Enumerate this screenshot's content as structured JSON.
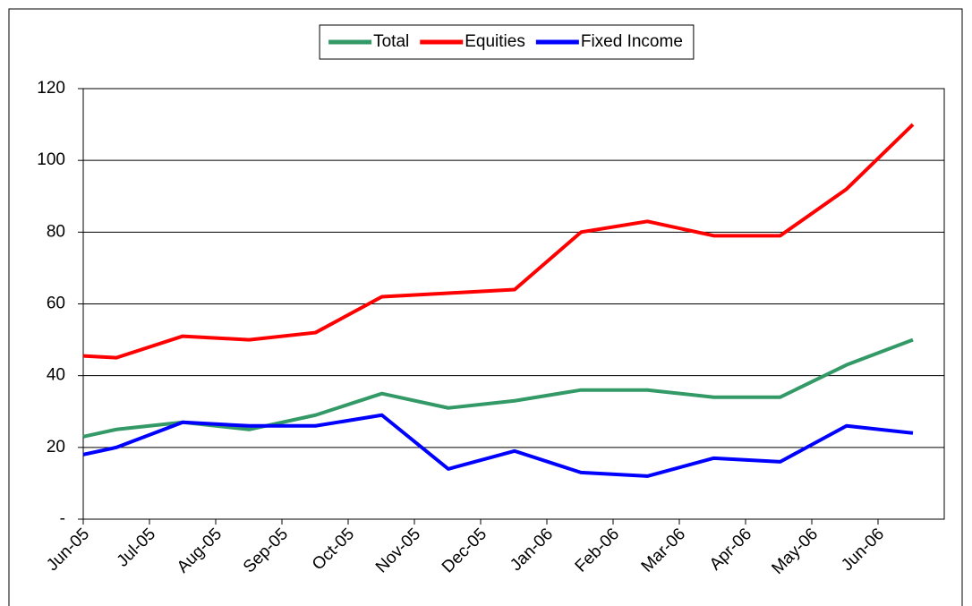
{
  "chart_data": {
    "type": "line",
    "categories": [
      "Jun-05",
      null,
      "Jul-05",
      "Aug-05",
      "Sep-05",
      "Oct-05",
      "Nov-05",
      "Dec-05",
      "Jan-06",
      "Feb-06",
      "Mar-06",
      "Apr-06",
      "May-06",
      "Jun-06"
    ],
    "series": [
      {
        "name": "Total",
        "color": "#339966",
        "values": [
          23,
          25,
          27,
          25,
          29,
          35,
          31,
          33,
          36,
          36,
          34,
          34,
          43,
          50
        ]
      },
      {
        "name": "Equities",
        "color": "#ff0000",
        "values": [
          45.5,
          45,
          51,
          50,
          52,
          62,
          63,
          64,
          80,
          83,
          79,
          79,
          92,
          110
        ]
      },
      {
        "name": "Fixed Income",
        "color": "#0000ff",
        "values": [
          18,
          20,
          27,
          26,
          26,
          29,
          14,
          19,
          13,
          12,
          17,
          16,
          26,
          24
        ]
      }
    ],
    "ylim": [
      0,
      120
    ],
    "yticks": [
      {
        "value": 0,
        "label": "-"
      },
      20,
      40,
      60,
      80,
      100,
      120
    ],
    "grid": true,
    "legend": "top"
  }
}
